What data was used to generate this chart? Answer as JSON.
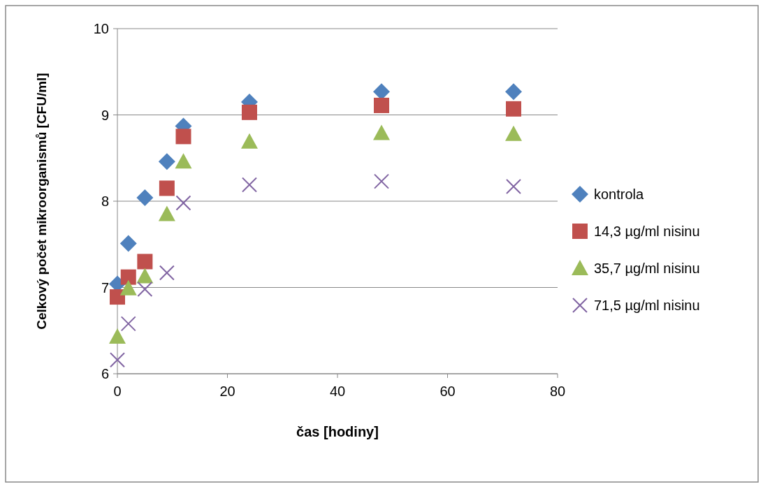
{
  "chart_data": {
    "type": "scatter",
    "xlabel": "čas [hodiny]",
    "ylabel": "Celkový počet mikroorganismů  [CFU/ml]",
    "x": [
      0,
      2,
      5,
      9,
      12,
      24,
      48,
      72
    ],
    "xlim": [
      0,
      80
    ],
    "xticks": [
      0,
      20,
      40,
      60,
      80
    ],
    "ylim": [
      6,
      10
    ],
    "yticks": [
      6,
      7,
      8,
      9,
      10
    ],
    "grid": "y",
    "legend": "right",
    "series": [
      {
        "name": "kontrola",
        "color": "#4f81bd",
        "marker": "diamond",
        "values": [
          7.04,
          7.51,
          8.04,
          8.46,
          8.87,
          9.15,
          9.27,
          9.27
        ]
      },
      {
        "name": "14,3 µg/ml nisinu",
        "color": "#c0504d",
        "marker": "square",
        "values": [
          6.89,
          7.12,
          7.3,
          8.15,
          8.75,
          9.03,
          9.11,
          9.07
        ]
      },
      {
        "name": "35,7 µg/ml nisinu",
        "color": "#9bbb59",
        "marker": "triangle",
        "values": [
          6.43,
          6.99,
          7.13,
          7.85,
          8.46,
          8.69,
          8.79,
          8.78
        ]
      },
      {
        "name": "71,5 µg/ml nisinu",
        "color": "#8064a2",
        "marker": "cross",
        "values": [
          6.16,
          6.58,
          6.98,
          7.17,
          7.98,
          8.19,
          8.23,
          8.17
        ]
      }
    ]
  }
}
